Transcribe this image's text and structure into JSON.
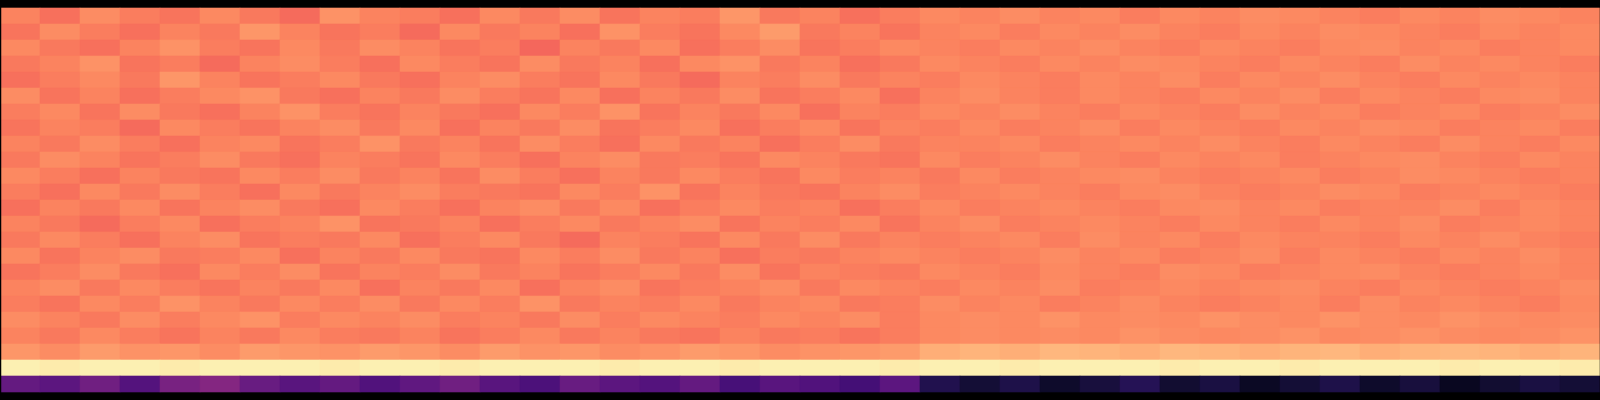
{
  "chart_data": {
    "type": "heatmap",
    "color": "magma",
    "zlim": [
      0,
      1
    ],
    "tick_labels": false,
    "cells": [
      [
        0.74,
        0.7,
        0.76,
        0.73,
        0.71,
        0.75,
        0.72,
        0.69,
        0.77,
        0.74,
        0.73,
        0.7,
        0.75,
        0.72,
        0.76,
        0.71,
        0.74,
        0.73,
        0.78,
        0.72,
        0.74,
        0.7,
        0.73,
        0.75,
        0.74,
        0.76,
        0.74,
        0.75,
        0.73,
        0.75,
        0.74,
        0.76,
        0.75,
        0.74,
        0.73,
        0.75,
        0.74,
        0.76,
        0.75,
        0.74
      ],
      [
        0.71,
        0.76,
        0.73,
        0.7,
        0.74,
        0.72,
        0.78,
        0.74,
        0.71,
        0.73,
        0.69,
        0.75,
        0.72,
        0.74,
        0.7,
        0.77,
        0.73,
        0.71,
        0.75,
        0.79,
        0.72,
        0.74,
        0.71,
        0.74,
        0.75,
        0.73,
        0.75,
        0.74,
        0.76,
        0.74,
        0.73,
        0.75,
        0.74,
        0.76,
        0.75,
        0.74,
        0.73,
        0.75,
        0.74,
        0.75
      ],
      [
        0.75,
        0.72,
        0.7,
        0.74,
        0.77,
        0.73,
        0.71,
        0.75,
        0.72,
        0.76,
        0.74,
        0.71,
        0.73,
        0.68,
        0.74,
        0.72,
        0.75,
        0.7,
        0.73,
        0.76,
        0.71,
        0.73,
        0.75,
        0.74,
        0.73,
        0.75,
        0.74,
        0.76,
        0.74,
        0.73,
        0.75,
        0.74,
        0.73,
        0.75,
        0.76,
        0.74,
        0.75,
        0.73,
        0.74,
        0.75
      ],
      [
        0.72,
        0.74,
        0.77,
        0.71,
        0.73,
        0.69,
        0.74,
        0.76,
        0.73,
        0.7,
        0.75,
        0.73,
        0.71,
        0.76,
        0.72,
        0.74,
        0.7,
        0.75,
        0.77,
        0.72,
        0.74,
        0.7,
        0.72,
        0.75,
        0.74,
        0.73,
        0.75,
        0.74,
        0.76,
        0.75,
        0.74,
        0.73,
        0.75,
        0.74,
        0.73,
        0.76,
        0.74,
        0.75,
        0.74,
        0.73
      ],
      [
        0.7,
        0.73,
        0.75,
        0.72,
        0.78,
        0.74,
        0.71,
        0.73,
        0.75,
        0.72,
        0.7,
        0.74,
        0.76,
        0.73,
        0.71,
        0.75,
        0.72,
        0.69,
        0.74,
        0.73,
        0.76,
        0.72,
        0.74,
        0.73,
        0.75,
        0.74,
        0.73,
        0.75,
        0.74,
        0.76,
        0.73,
        0.75,
        0.74,
        0.76,
        0.74,
        0.73,
        0.75,
        0.74,
        0.75,
        0.74
      ],
      [
        0.76,
        0.71,
        0.74,
        0.7,
        0.73,
        0.75,
        0.77,
        0.72,
        0.7,
        0.74,
        0.72,
        0.76,
        0.73,
        0.71,
        0.75,
        0.7,
        0.74,
        0.72,
        0.76,
        0.71,
        0.73,
        0.75,
        0.7,
        0.74,
        0.76,
        0.74,
        0.73,
        0.75,
        0.74,
        0.73,
        0.75,
        0.74,
        0.76,
        0.73,
        0.75,
        0.74,
        0.73,
        0.75,
        0.76,
        0.74
      ],
      [
        0.73,
        0.75,
        0.71,
        0.76,
        0.72,
        0.7,
        0.74,
        0.77,
        0.73,
        0.71,
        0.74,
        0.72,
        0.7,
        0.75,
        0.73,
        0.77,
        0.71,
        0.74,
        0.72,
        0.75,
        0.7,
        0.74,
        0.73,
        0.75,
        0.74,
        0.76,
        0.74,
        0.73,
        0.75,
        0.74,
        0.73,
        0.76,
        0.74,
        0.75,
        0.73,
        0.74,
        0.75,
        0.73,
        0.74,
        0.76
      ],
      [
        0.71,
        0.74,
        0.73,
        0.69,
        0.75,
        0.73,
        0.71,
        0.74,
        0.76,
        0.72,
        0.75,
        0.7,
        0.74,
        0.72,
        0.76,
        0.71,
        0.73,
        0.75,
        0.7,
        0.73,
        0.75,
        0.71,
        0.74,
        0.73,
        0.75,
        0.73,
        0.74,
        0.76,
        0.73,
        0.75,
        0.74,
        0.73,
        0.75,
        0.74,
        0.76,
        0.75,
        0.73,
        0.74,
        0.75,
        0.73
      ],
      [
        0.74,
        0.72,
        0.76,
        0.73,
        0.7,
        0.74,
        0.75,
        0.71,
        0.73,
        0.77,
        0.72,
        0.74,
        0.71,
        0.76,
        0.73,
        0.7,
        0.75,
        0.72,
        0.74,
        0.7,
        0.73,
        0.76,
        0.72,
        0.74,
        0.74,
        0.75,
        0.73,
        0.74,
        0.75,
        0.74,
        0.76,
        0.74,
        0.73,
        0.75,
        0.74,
        0.73,
        0.76,
        0.74,
        0.73,
        0.75
      ],
      [
        0.72,
        0.76,
        0.74,
        0.71,
        0.73,
        0.76,
        0.72,
        0.7,
        0.74,
        0.73,
        0.71,
        0.75,
        0.73,
        0.7,
        0.74,
        0.76,
        0.72,
        0.73,
        0.71,
        0.75,
        0.74,
        0.72,
        0.71,
        0.75,
        0.73,
        0.74,
        0.76,
        0.74,
        0.73,
        0.75,
        0.74,
        0.75,
        0.73,
        0.74,
        0.75,
        0.76,
        0.74,
        0.73,
        0.75,
        0.74
      ],
      [
        0.75,
        0.73,
        0.7,
        0.74,
        0.72,
        0.71,
        0.75,
        0.73,
        0.76,
        0.72,
        0.74,
        0.71,
        0.76,
        0.73,
        0.7,
        0.74,
        0.72,
        0.75,
        0.73,
        0.71,
        0.75,
        0.73,
        0.74,
        0.72,
        0.75,
        0.73,
        0.74,
        0.75,
        0.76,
        0.74,
        0.73,
        0.74,
        0.75,
        0.73,
        0.74,
        0.76,
        0.75,
        0.74,
        0.73,
        0.74
      ],
      [
        0.73,
        0.7,
        0.75,
        0.72,
        0.76,
        0.73,
        0.7,
        0.75,
        0.72,
        0.74,
        0.76,
        0.73,
        0.72,
        0.71,
        0.75,
        0.73,
        0.77,
        0.71,
        0.74,
        0.72,
        0.71,
        0.74,
        0.76,
        0.73,
        0.74,
        0.75,
        0.74,
        0.73,
        0.75,
        0.76,
        0.74,
        0.73,
        0.74,
        0.76,
        0.75,
        0.73,
        0.74,
        0.75,
        0.74,
        0.73
      ],
      [
        0.7,
        0.74,
        0.72,
        0.75,
        0.71,
        0.74,
        0.76,
        0.72,
        0.7,
        0.75,
        0.73,
        0.7,
        0.74,
        0.76,
        0.72,
        0.75,
        0.7,
        0.73,
        0.75,
        0.73,
        0.74,
        0.7,
        0.73,
        0.75,
        0.73,
        0.74,
        0.75,
        0.74,
        0.73,
        0.75,
        0.76,
        0.74,
        0.75,
        0.73,
        0.74,
        0.74,
        0.76,
        0.73,
        0.75,
        0.74
      ],
      [
        0.74,
        0.72,
        0.69,
        0.73,
        0.75,
        0.7,
        0.73,
        0.74,
        0.77,
        0.71,
        0.72,
        0.74,
        0.7,
        0.73,
        0.75,
        0.72,
        0.74,
        0.76,
        0.71,
        0.74,
        0.73,
        0.75,
        0.71,
        0.74,
        0.76,
        0.73,
        0.74,
        0.75,
        0.74,
        0.73,
        0.75,
        0.74,
        0.73,
        0.75,
        0.74,
        0.76,
        0.73,
        0.74,
        0.75,
        0.74
      ],
      [
        0.72,
        0.75,
        0.73,
        0.7,
        0.74,
        0.76,
        0.71,
        0.73,
        0.72,
        0.75,
        0.7,
        0.73,
        0.75,
        0.72,
        0.69,
        0.74,
        0.73,
        0.71,
        0.75,
        0.72,
        0.76,
        0.72,
        0.74,
        0.73,
        0.74,
        0.75,
        0.73,
        0.76,
        0.74,
        0.75,
        0.73,
        0.75,
        0.74,
        0.74,
        0.73,
        0.75,
        0.74,
        0.76,
        0.74,
        0.73
      ],
      [
        0.75,
        0.71,
        0.74,
        0.76,
        0.72,
        0.73,
        0.75,
        0.7,
        0.74,
        0.72,
        0.75,
        0.72,
        0.71,
        0.75,
        0.73,
        0.76,
        0.72,
        0.74,
        0.7,
        0.73,
        0.72,
        0.74,
        0.75,
        0.74,
        0.73,
        0.74,
        0.76,
        0.74,
        0.75,
        0.73,
        0.74,
        0.76,
        0.73,
        0.75,
        0.74,
        0.73,
        0.75,
        0.74,
        0.76,
        0.74
      ],
      [
        0.71,
        0.73,
        0.76,
        0.72,
        0.7,
        0.75,
        0.73,
        0.76,
        0.71,
        0.74,
        0.73,
        0.76,
        0.72,
        0.74,
        0.71,
        0.73,
        0.75,
        0.72,
        0.76,
        0.71,
        0.74,
        0.73,
        0.72,
        0.75,
        0.74,
        0.73,
        0.75,
        0.74,
        0.73,
        0.76,
        0.75,
        0.73,
        0.74,
        0.75,
        0.76,
        0.74,
        0.73,
        0.74,
        0.75,
        0.74
      ],
      [
        0.74,
        0.76,
        0.72,
        0.75,
        0.73,
        0.71,
        0.74,
        0.72,
        0.75,
        0.7,
        0.74,
        0.72,
        0.75,
        0.7,
        0.74,
        0.76,
        0.71,
        0.73,
        0.74,
        0.76,
        0.72,
        0.75,
        0.74,
        0.73,
        0.75,
        0.74,
        0.76,
        0.73,
        0.74,
        0.75,
        0.74,
        0.75,
        0.76,
        0.74,
        0.73,
        0.75,
        0.74,
        0.73,
        0.74,
        0.76
      ],
      [
        0.73,
        0.71,
        0.75,
        0.73,
        0.77,
        0.74,
        0.72,
        0.75,
        0.73,
        0.76,
        0.72,
        0.75,
        0.73,
        0.77,
        0.72,
        0.74,
        0.73,
        0.75,
        0.72,
        0.74,
        0.75,
        0.72,
        0.73,
        0.76,
        0.74,
        0.75,
        0.73,
        0.74,
        0.76,
        0.74,
        0.73,
        0.74,
        0.75,
        0.73,
        0.76,
        0.74,
        0.75,
        0.74,
        0.73,
        0.75
      ],
      [
        0.76,
        0.74,
        0.72,
        0.76,
        0.73,
        0.75,
        0.77,
        0.73,
        0.75,
        0.74,
        0.76,
        0.73,
        0.74,
        0.72,
        0.76,
        0.73,
        0.75,
        0.74,
        0.73,
        0.75,
        0.74,
        0.76,
        0.73,
        0.75,
        0.76,
        0.75,
        0.77,
        0.75,
        0.76,
        0.75,
        0.77,
        0.76,
        0.75,
        0.77,
        0.76,
        0.75,
        0.77,
        0.76,
        0.75,
        0.76
      ],
      [
        0.74,
        0.72,
        0.75,
        0.73,
        0.71,
        0.74,
        0.72,
        0.75,
        0.73,
        0.72,
        0.74,
        0.71,
        0.73,
        0.75,
        0.72,
        0.74,
        0.72,
        0.71,
        0.74,
        0.72,
        0.73,
        0.71,
        0.73,
        0.75,
        0.76,
        0.75,
        0.76,
        0.75,
        0.77,
        0.76,
        0.75,
        0.76,
        0.77,
        0.75,
        0.76,
        0.77,
        0.76,
        0.75,
        0.76,
        0.77
      ],
      [
        0.78,
        0.76,
        0.79,
        0.77,
        0.78,
        0.76,
        0.79,
        0.78,
        0.77,
        0.79,
        0.78,
        0.76,
        0.79,
        0.77,
        0.78,
        0.76,
        0.77,
        0.79,
        0.78,
        0.76,
        0.77,
        0.78,
        0.79,
        0.83,
        0.84,
        0.83,
        0.85,
        0.84,
        0.83,
        0.85,
        0.84,
        0.83,
        0.84,
        0.85,
        0.83,
        0.84,
        0.85,
        0.84,
        0.83,
        0.84
      ],
      [
        0.97,
        0.96,
        0.97,
        0.97,
        0.96,
        0.97,
        0.97,
        0.97,
        0.96,
        0.97,
        0.97,
        0.96,
        0.97,
        0.97,
        0.97,
        0.96,
        0.97,
        0.97,
        0.96,
        0.97,
        0.97,
        0.97,
        0.96,
        0.97,
        0.97,
        0.96,
        0.97,
        0.97,
        0.97,
        0.96,
        0.97,
        0.97,
        0.96,
        0.97,
        0.97,
        0.97,
        0.96,
        0.97,
        0.97,
        0.96
      ],
      [
        0.3,
        0.28,
        0.33,
        0.26,
        0.35,
        0.38,
        0.31,
        0.27,
        0.3,
        0.25,
        0.29,
        0.33,
        0.27,
        0.24,
        0.31,
        0.28,
        0.26,
        0.3,
        0.23,
        0.27,
        0.25,
        0.22,
        0.28,
        0.14,
        0.1,
        0.13,
        0.08,
        0.11,
        0.15,
        0.09,
        0.12,
        0.07,
        0.1,
        0.13,
        0.08,
        0.11,
        0.06,
        0.09,
        0.12,
        0.1
      ]
    ]
  }
}
